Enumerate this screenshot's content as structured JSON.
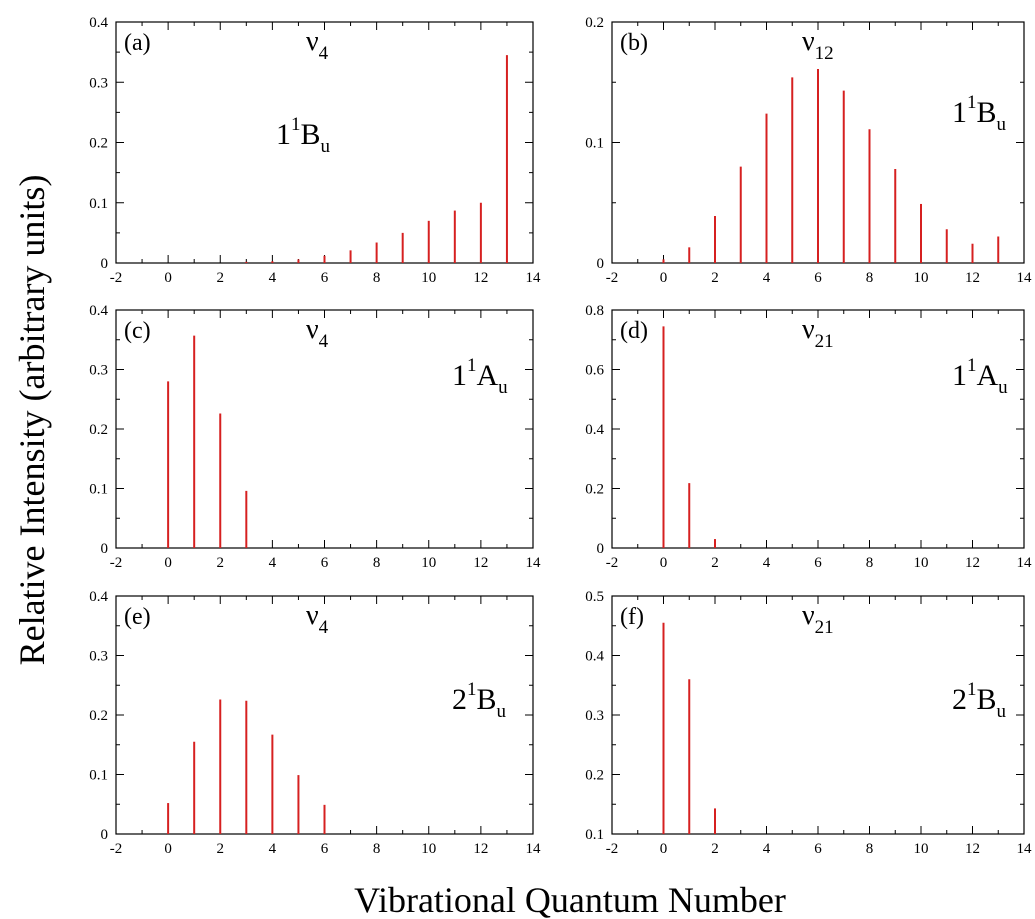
{
  "figure": {
    "ylabel": "Relative Intensity (arbitrary units)",
    "xlabel": "Vibrational Quantum Number"
  },
  "colors": {
    "bar": "#d62020",
    "axis": "#000000"
  },
  "chart_data": [
    {
      "type": "bar",
      "panel": "(a)",
      "mode": {
        "base": "ν",
        "sub": "4"
      },
      "state": {
        "base": "1",
        "sup": "1",
        "letter": "B",
        "sub": "u"
      },
      "xlim": [
        -2,
        14
      ],
      "ylim": [
        0,
        0.4
      ],
      "xticks": [
        -2,
        0,
        2,
        4,
        6,
        8,
        10,
        12,
        14
      ],
      "yticks": [
        0,
        0.1,
        0.2,
        0.3,
        0.4
      ],
      "ytick_labels": [
        "0",
        "0.1",
        "0.2",
        "0.3",
        "0.4"
      ],
      "x": [
        0,
        1,
        2,
        3,
        4,
        5,
        6,
        7,
        8,
        9,
        10,
        11,
        12,
        13
      ],
      "values": [
        0,
        0,
        0,
        0.002,
        0.003,
        0.006,
        0.012,
        0.021,
        0.034,
        0.05,
        0.07,
        0.087,
        0.1,
        0.345
      ],
      "show_xticks_labels": true
    },
    {
      "type": "bar",
      "panel": "(b)",
      "mode": {
        "base": "ν",
        "sub": "12"
      },
      "state": {
        "base": "1",
        "sup": "1",
        "letter": "B",
        "sub": "u"
      },
      "xlim": [
        -2,
        14
      ],
      "ylim": [
        0,
        0.2
      ],
      "xticks": [
        -2,
        0,
        2,
        4,
        6,
        8,
        10,
        12,
        14
      ],
      "yticks": [
        0,
        0.1,
        0.2
      ],
      "ytick_labels": [
        "0",
        "0.1",
        "0.2"
      ],
      "x": [
        0,
        1,
        2,
        3,
        4,
        5,
        6,
        7,
        8,
        9,
        10,
        11,
        12,
        13
      ],
      "values": [
        0.003,
        0.013,
        0.039,
        0.08,
        0.124,
        0.154,
        0.161,
        0.143,
        0.111,
        0.078,
        0.049,
        0.028,
        0.016,
        0.022
      ],
      "show_xticks_labels": true
    },
    {
      "type": "bar",
      "panel": "(c)",
      "mode": {
        "base": "ν",
        "sub": "4"
      },
      "state": {
        "base": "1",
        "sup": "1",
        "letter": "A",
        "sub": "u"
      },
      "xlim": [
        -2,
        14
      ],
      "ylim": [
        0,
        0.4
      ],
      "xticks": [
        -2,
        0,
        2,
        4,
        6,
        8,
        10,
        12,
        14
      ],
      "yticks": [
        0,
        0.1,
        0.2,
        0.3,
        0.4
      ],
      "ytick_labels": [
        "0",
        "0.1",
        "0.2",
        "0.3",
        "0.4"
      ],
      "x": [
        0,
        1,
        2,
        3
      ],
      "values": [
        0.28,
        0.357,
        0.226,
        0.096
      ],
      "show_xticks_labels": true
    },
    {
      "type": "bar",
      "panel": "(d)",
      "mode": {
        "base": "ν",
        "sub": "21"
      },
      "state": {
        "base": "1",
        "sup": "1",
        "letter": "A",
        "sub": "u"
      },
      "xlim": [
        -2,
        14
      ],
      "ylim": [
        0,
        0.8
      ],
      "xticks": [
        -2,
        0,
        2,
        4,
        6,
        8,
        10,
        12,
        14
      ],
      "yticks": [
        0,
        0.2,
        0.4,
        0.6,
        0.8
      ],
      "ytick_labels": [
        "0",
        "0.2",
        "0.4",
        "0.6",
        "0.8"
      ],
      "x": [
        0,
        1,
        2
      ],
      "values": [
        0.745,
        0.218,
        0.03
      ],
      "show_xticks_labels": true
    },
    {
      "type": "bar",
      "panel": "(e)",
      "mode": {
        "base": "ν",
        "sub": "4"
      },
      "state": {
        "base": "2",
        "sup": "1",
        "letter": "B",
        "sub": "u"
      },
      "xlim": [
        -2,
        14
      ],
      "ylim": [
        0,
        0.4
      ],
      "xticks": [
        -2,
        0,
        2,
        4,
        6,
        8,
        10,
        12,
        14
      ],
      "yticks": [
        0,
        0.1,
        0.2,
        0.3,
        0.4
      ],
      "ytick_labels": [
        "0",
        "0.1",
        "0.2",
        "0.3",
        "0.4"
      ],
      "x": [
        0,
        1,
        2,
        3,
        4,
        5,
        6
      ],
      "values": [
        0.052,
        0.155,
        0.226,
        0.224,
        0.167,
        0.099,
        0.049
      ],
      "show_xticks_labels": true
    },
    {
      "type": "bar",
      "panel": "(f)",
      "mode": {
        "base": "ν",
        "sub": "21"
      },
      "state": {
        "base": "2",
        "sup": "1",
        "letter": "B",
        "sub": "u"
      },
      "xlim": [
        -2,
        14
      ],
      "ylim": [
        0.1,
        0.5
      ],
      "xticks": [
        -2,
        0,
        2,
        4,
        6,
        8,
        10,
        12,
        14
      ],
      "yticks": [
        0.1,
        0.2,
        0.3,
        0.4,
        0.5
      ],
      "ytick_labels": [
        "0.1",
        "0.2",
        "0.3",
        "0.4",
        "0.5"
      ],
      "x": [
        0,
        1,
        2
      ],
      "values": [
        0.455,
        0.36,
        0.143
      ],
      "show_xticks_labels": true
    }
  ]
}
